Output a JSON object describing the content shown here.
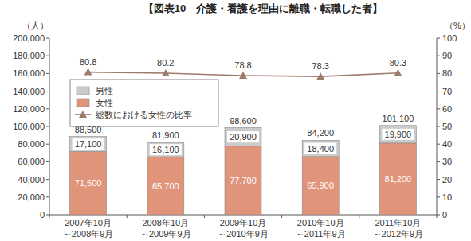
{
  "chart_data": {
    "type": "bar",
    "title": "【図表10　介護・看護を理由に離職・転職した者】",
    "y_label": "（人）",
    "y2_label": "（%）",
    "categories": [
      "2007年10月\n～2008年9月",
      "2008年10月\n～2009年9月",
      "2009年10月\n～2010年9月",
      "2010年10月\n～2011年9月",
      "2011年10月\n～2012年9月"
    ],
    "series": [
      {
        "name": "女性",
        "color": "#e0957b",
        "values": [
          71500,
          65700,
          77700,
          65900,
          81200
        ],
        "value_labels": [
          "71,500",
          "65,700",
          "77,700",
          "65,900",
          "81,200"
        ]
      },
      {
        "name": "男性",
        "color": "#cbcbcb",
        "values": [
          17100,
          16100,
          20900,
          18400,
          19900
        ],
        "value_labels": [
          "17,100",
          "16,100",
          "20,900",
          "18,400",
          "19,900"
        ]
      },
      {
        "name": "総数における女性の比率",
        "type": "line",
        "axis": "y2",
        "color": "#9c7b6b",
        "marker": "triangle",
        "line_style": "solid",
        "values": [
          80.8,
          80.2,
          78.8,
          78.3,
          80.3
        ]
      }
    ],
    "totals": {
      "values": [
        88500,
        81900,
        98600,
        84200,
        101100
      ],
      "value_labels": [
        "88,500",
        "81,900",
        "98,600",
        "84,200",
        "101,100"
      ]
    },
    "ylim": [
      0,
      200000
    ],
    "yticks": [
      0,
      {
        "value": 20000,
        "label": "20,000"
      },
      {
        "value": 40000,
        "label": "40,000"
      },
      {
        "value": 60000,
        "label": "60,000"
      },
      {
        "value": 80000,
        "label": "80,000"
      },
      {
        "value": 100000,
        "label": "100,000"
      },
      {
        "value": 120000,
        "label": "120,000"
      },
      {
        "value": 140000,
        "label": "140,000"
      },
      {
        "value": 160000,
        "label": "160,000"
      },
      {
        "value": 180000,
        "label": "180,000"
      },
      {
        "value": 200000,
        "label": "200,000"
      }
    ],
    "y2lim": [
      0,
      100
    ],
    "y2ticks": [
      0,
      10,
      20,
      30,
      40,
      50,
      60,
      70,
      80,
      90,
      100
    ],
    "stacked": true,
    "data_labels": true,
    "grid": false,
    "legend": "upper left"
  }
}
